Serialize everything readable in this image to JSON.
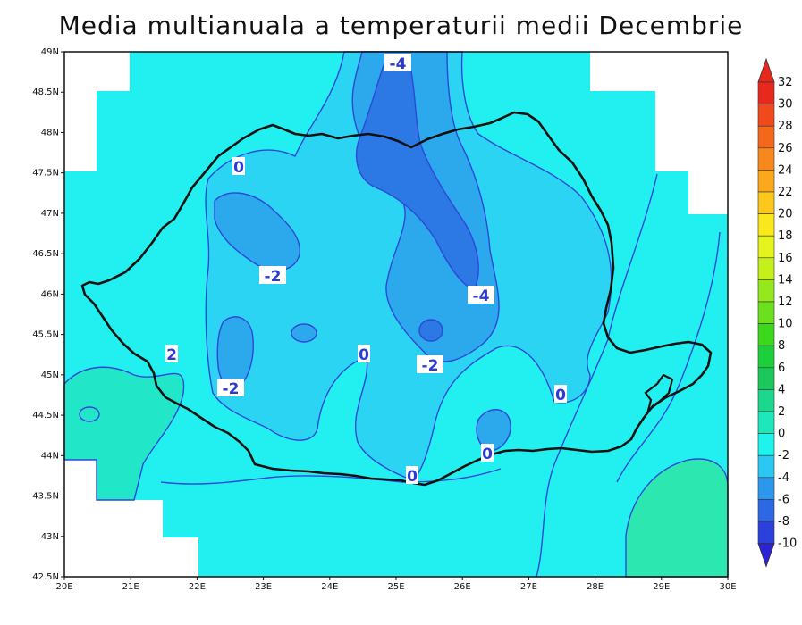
{
  "title": "Media multianuala a temperaturii medii Decembrie",
  "map": {
    "lat_ticks": [
      "49N",
      "48.5N",
      "48N",
      "47.5N",
      "47N",
      "46.5N",
      "46N",
      "45.5N",
      "45N",
      "44.5N",
      "44N",
      "43.5N",
      "43N",
      "42.5N"
    ],
    "lon_ticks": [
      "20E",
      "21E",
      "22E",
      "23E",
      "24E",
      "25E",
      "26E",
      "27E",
      "28E",
      "29E",
      "30E"
    ],
    "contour_labels": [
      "-4",
      "0",
      "-2",
      "-4",
      "-2",
      "0",
      "-2",
      "2",
      "-2",
      "0",
      "0",
      "0"
    ]
  },
  "colorbar": {
    "labels": [
      "32",
      "30",
      "28",
      "26",
      "24",
      "22",
      "20",
      "18",
      "16",
      "14",
      "12",
      "10",
      "8",
      "6",
      "4",
      "2",
      "0",
      "-2",
      "-4",
      "-6",
      "-8",
      "-10"
    ],
    "colors": [
      "#e8281c",
      "#f04a1c",
      "#f4681c",
      "#f8881c",
      "#fca81c",
      "#fcc81c",
      "#f8e81c",
      "#e4f41c",
      "#c4f01c",
      "#94e81c",
      "#6ce01c",
      "#3cd81c",
      "#1cd03c",
      "#1cc85c",
      "#1cd88c",
      "#1ce8bc",
      "#1cf4ec",
      "#2cc8f4",
      "#2c98ec",
      "#2c68e4",
      "#2c40dc",
      "#2c24d4"
    ]
  }
}
